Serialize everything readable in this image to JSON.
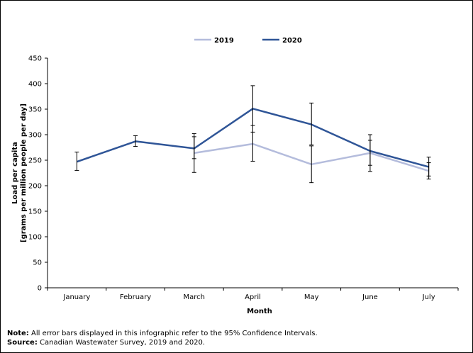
{
  "chart_data": {
    "type": "line",
    "title": "",
    "xlabel": "Month",
    "ylabel_line1": "Load per capita",
    "ylabel_line2": "[grams per million people per day]",
    "categories": [
      "January",
      "February",
      "March",
      "April",
      "May",
      "June",
      "July"
    ],
    "ylim": [
      0,
      450
    ],
    "yticks": [
      "0",
      "50",
      "100",
      "150",
      "200",
      "250",
      "300",
      "350",
      "400",
      "450"
    ],
    "grid": false,
    "legend_position": "top-center",
    "series": [
      {
        "name": "2019",
        "color": "#b4bcdc",
        "values": [
          null,
          null,
          264,
          282,
          242,
          264,
          229
        ],
        "err_low": [
          null,
          null,
          226,
          248,
          206,
          240,
          213
        ],
        "err_high": [
          null,
          null,
          302,
          318,
          278,
          289,
          245
        ]
      },
      {
        "name": "2020",
        "color": "#2f5597",
        "values": [
          247,
          287,
          273,
          351,
          320,
          268,
          237
        ],
        "err_low": [
          230,
          277,
          253,
          305,
          280,
          228,
          219
        ],
        "err_high": [
          266,
          298,
          296,
          396,
          362,
          300,
          256
        ]
      }
    ]
  },
  "notes": {
    "note_label": "Note:",
    "note_text": " All error bars displayed in this infographic refer to the 95% Confidence Intervals.",
    "source_label": "Source:",
    "source_text": " Canadian Wastewater Survey, 2019 and 2020."
  }
}
